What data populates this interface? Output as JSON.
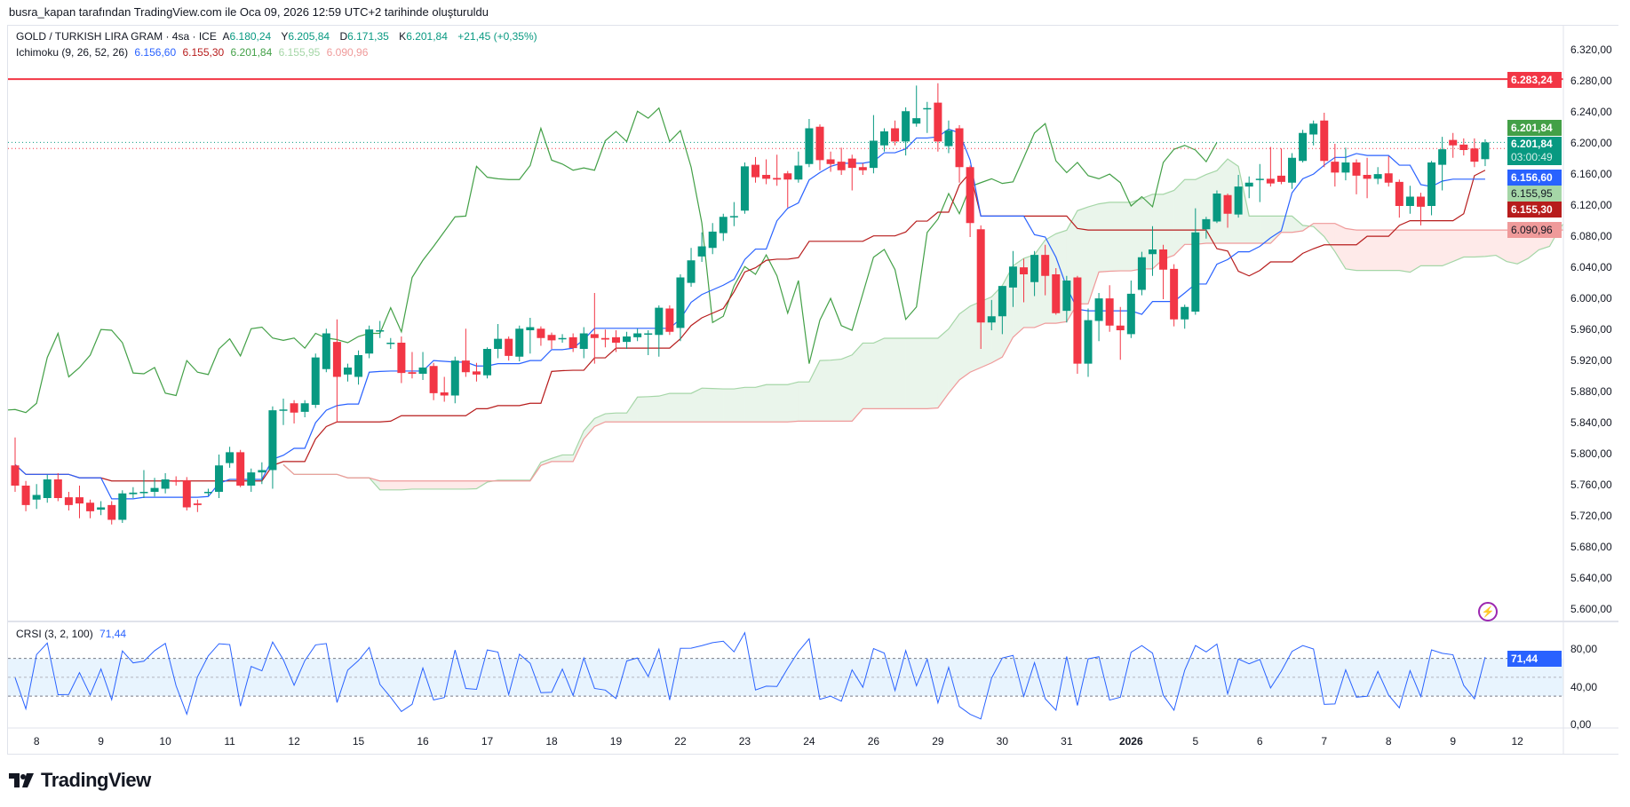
{
  "header": {
    "credit": "busra_kapan tarafından TradingView.com ile Oca 09, 2026 12:59 UTC+2 tarihinde oluşturuldu"
  },
  "legend": {
    "symbol": "GOLD / TURKISH LIRA GRAM · 4sa · ICE",
    "o_label": "A",
    "o": "6.180,24",
    "h_label": "Y",
    "h": "6.205,84",
    "l_label": "D",
    "l": "6.171,35",
    "c_label": "K",
    "c": "6.201,84",
    "change": "+21,45 (+0,35%)",
    "ichimoku_name": "Ichimoku (9, 26, 52, 26)",
    "ichimoku_values": [
      "6.156,60",
      "6.155,30",
      "6.201,84",
      "6.155,95",
      "6.090,96"
    ],
    "crsi_name": "CRSI (3, 2, 100)",
    "crsi_value": "71,44"
  },
  "colors": {
    "up": "#089981",
    "down": "#f23645",
    "tenkan": "#2962ff",
    "kijun": "#b71c1c",
    "chikou": "#43a047",
    "span_a": "#a5d6a7",
    "span_b": "#ef9a9a",
    "crsi": "#2962ff",
    "level": "#f23645"
  },
  "price_axis": [
    "6.320,00",
    "6.280,00",
    "6.240,00",
    "6.200,00",
    "6.160,00",
    "6.120,00",
    "6.080,00",
    "6.040,00",
    "6.000,00",
    "5.960,00",
    "5.920,00",
    "5.880,00",
    "5.840,00",
    "5.800,00",
    "5.760,00",
    "5.720,00",
    "5.680,00",
    "5.640,00",
    "5.600,00"
  ],
  "price_axis_values": [
    6320,
    6280,
    6240,
    6200,
    6160,
    6120,
    6080,
    6040,
    6000,
    5960,
    5920,
    5880,
    5840,
    5800,
    5760,
    5720,
    5680,
    5640,
    5600
  ],
  "price_labels": {
    "level": "6.283,24",
    "chikou": "6.201,84",
    "last": "6.201,84",
    "countdown": "03:00:49",
    "tenkan": "6.156,60",
    "span_a": "6.155,95",
    "kijun": "6.155,30",
    "span_b": "6.090,96"
  },
  "crsi_axis": [
    "80,00",
    "40,00",
    "0,00"
  ],
  "crsi_label": "71,44",
  "time_axis": [
    "8",
    "9",
    "10",
    "11",
    "12",
    "15",
    "16",
    "17",
    "18",
    "19",
    "22",
    "23",
    "24",
    "26",
    "29",
    "30",
    "31",
    "2026",
    "5",
    "6",
    "7",
    "8",
    "9",
    "12"
  ],
  "brand": "TradingView",
  "chart_data": {
    "type": "candlestick",
    "ichimoku": {
      "conversion": 9,
      "base": 26,
      "lagging": 52,
      "displacement": 26
    },
    "crsi": {
      "rsi": 3,
      "streak": 2,
      "rank": 100,
      "upper": 70,
      "middle": 50,
      "lower": 30,
      "last": 71.44
    },
    "horizontal_level": 6283.24,
    "last_price": 6201.84,
    "prev_close_line": 6194,
    "y_range": [
      5590,
      6330
    ],
    "crsi_range": [
      0,
      100
    ],
    "ohlc": [
      [
        5786,
        5822,
        5752,
        5760
      ],
      [
        5760,
        5766,
        5727,
        5735
      ],
      [
        5742,
        5762,
        5730,
        5748
      ],
      [
        5744,
        5774,
        5738,
        5768
      ],
      [
        5768,
        5776,
        5740,
        5744
      ],
      [
        5745,
        5752,
        5728,
        5735
      ],
      [
        5745,
        5760,
        5718,
        5737
      ],
      [
        5738,
        5742,
        5718,
        5727
      ],
      [
        5729,
        5740,
        5722,
        5732
      ],
      [
        5735,
        5740,
        5710,
        5716
      ],
      [
        5716,
        5754,
        5712,
        5750
      ],
      [
        5749,
        5758,
        5744,
        5751
      ],
      [
        5752,
        5780,
        5744,
        5752
      ],
      [
        5752,
        5770,
        5746,
        5757
      ],
      [
        5756,
        5776,
        5750,
        5768
      ],
      [
        5767,
        5772,
        5760,
        5765
      ],
      [
        5767,
        5771,
        5728,
        5732
      ],
      [
        5737,
        5742,
        5726,
        5735
      ],
      [
        5751,
        5756,
        5747,
        5752
      ],
      [
        5752,
        5800,
        5744,
        5786
      ],
      [
        5789,
        5810,
        5783,
        5803
      ],
      [
        5803,
        5806,
        5758,
        5760
      ],
      [
        5760,
        5782,
        5752,
        5777
      ],
      [
        5777,
        5790,
        5762,
        5780
      ],
      [
        5780,
        5862,
        5756,
        5857
      ],
      [
        5857,
        5872,
        5838,
        5858
      ],
      [
        5866,
        5870,
        5840,
        5854
      ],
      [
        5855,
        5870,
        5848,
        5866
      ],
      [
        5864,
        5930,
        5860,
        5925
      ],
      [
        5910,
        5962,
        5906,
        5956
      ],
      [
        5945,
        5974,
        5841,
        5900
      ],
      [
        5903,
        5917,
        5894,
        5912
      ],
      [
        5900,
        5934,
        5890,
        5928
      ],
      [
        5930,
        5966,
        5924,
        5961
      ],
      [
        5960,
        5972,
        5950,
        5960
      ],
      [
        5944,
        5950,
        5936,
        5944
      ],
      [
        5944,
        5952,
        5892,
        5905
      ],
      [
        5906,
        5932,
        5898,
        5904
      ],
      [
        5904,
        5932,
        5896,
        5912
      ],
      [
        5914,
        5918,
        5870,
        5879
      ],
      [
        5880,
        5900,
        5868,
        5876
      ],
      [
        5876,
        5926,
        5866,
        5921
      ],
      [
        5921,
        5962,
        5900,
        5906
      ],
      [
        5907,
        5918,
        5894,
        5903
      ],
      [
        5902,
        5938,
        5898,
        5936
      ],
      [
        5936,
        5968,
        5924,
        5949
      ],
      [
        5949,
        5952,
        5921,
        5927
      ],
      [
        5926,
        5966,
        5920,
        5962
      ],
      [
        5960,
        5976,
        5930,
        5964
      ],
      [
        5962,
        5965,
        5940,
        5950
      ],
      [
        5954,
        5957,
        5936,
        5947
      ],
      [
        5950,
        5955,
        5944,
        5950
      ],
      [
        5951,
        5956,
        5932,
        5937
      ],
      [
        5936,
        5964,
        5924,
        5956
      ],
      [
        5955,
        6008,
        5917,
        5950
      ],
      [
        5950,
        5961,
        5938,
        5948
      ],
      [
        5951,
        5960,
        5932,
        5944
      ],
      [
        5945,
        5958,
        5936,
        5952
      ],
      [
        5951,
        5962,
        5946,
        5956
      ],
      [
        5956,
        5960,
        5928,
        5956
      ],
      [
        5954,
        5992,
        5926,
        5989
      ],
      [
        5988,
        5992,
        5954,
        5958
      ],
      [
        5963,
        6032,
        5946,
        6028
      ],
      [
        6021,
        6066,
        6016,
        6050
      ],
      [
        6055,
        6086,
        6048,
        6068
      ],
      [
        6066,
        6098,
        6058,
        6087
      ],
      [
        6085,
        6110,
        6075,
        6106
      ],
      [
        6107,
        6125,
        6094,
        6107
      ],
      [
        6114,
        6176,
        6110,
        6171
      ],
      [
        6173,
        6183,
        6150,
        6157
      ],
      [
        6160,
        6180,
        6148,
        6155
      ],
      [
        6156,
        6186,
        6146,
        6154
      ],
      [
        6162,
        6165,
        6118,
        6154
      ],
      [
        6154,
        6190,
        6150,
        6172
      ],
      [
        6174,
        6232,
        6170,
        6220
      ],
      [
        6222,
        6225,
        6166,
        6179
      ],
      [
        6180,
        6190,
        6164,
        6174
      ],
      [
        6177,
        6195,
        6160,
        6166
      ],
      [
        6181,
        6186,
        6140,
        6169
      ],
      [
        6170,
        6175,
        6160,
        6166
      ],
      [
        6169,
        6237,
        6162,
        6204
      ],
      [
        6198,
        6220,
        6190,
        6216
      ],
      [
        6220,
        6230,
        6198,
        6203
      ],
      [
        6203,
        6247,
        6185,
        6242
      ],
      [
        6226,
        6275,
        6222,
        6233
      ],
      [
        6246,
        6254,
        6214,
        6246
      ],
      [
        6253,
        6278,
        6190,
        6203
      ],
      [
        6197,
        6230,
        6188,
        6217
      ],
      [
        6220,
        6224,
        6150,
        6170
      ],
      [
        6170,
        6172,
        6080,
        6098
      ],
      [
        6090,
        6095,
        5936,
        5970
      ],
      [
        5970,
        5999,
        5960,
        5978
      ],
      [
        5978,
        6017,
        5955,
        6017
      ],
      [
        6015,
        6062,
        5990,
        6042
      ],
      [
        6041,
        6052,
        5996,
        6032
      ],
      [
        6022,
        6062,
        6004,
        6057
      ],
      [
        6057,
        6070,
        6005,
        6030
      ],
      [
        6032,
        6040,
        5980,
        5982
      ],
      [
        5985,
        6030,
        5970,
        6024
      ],
      [
        6028,
        6030,
        5904,
        5917
      ],
      [
        5917,
        5988,
        5900,
        5973
      ],
      [
        5972,
        6008,
        5946,
        6001
      ],
      [
        6001,
        6018,
        5958,
        5966
      ],
      [
        5966,
        5990,
        5922,
        5960
      ],
      [
        5955,
        6024,
        5950,
        6007
      ],
      [
        6012,
        6061,
        6005,
        6054
      ],
      [
        6058,
        6094,
        6030,
        6064
      ],
      [
        6064,
        6070,
        6000,
        6038
      ],
      [
        6039,
        6045,
        5965,
        5974
      ],
      [
        5974,
        5993,
        5962,
        5990
      ],
      [
        5984,
        6117,
        5980,
        6086
      ],
      [
        6090,
        6106,
        6078,
        6103
      ],
      [
        6100,
        6140,
        6098,
        6136
      ],
      [
        6134,
        6136,
        6092,
        6110
      ],
      [
        6109,
        6160,
        6105,
        6145
      ],
      [
        6145,
        6158,
        6130,
        6150
      ],
      [
        6155,
        6174,
        6125,
        6155
      ],
      [
        6155,
        6196,
        6145,
        6149
      ],
      [
        6159,
        6194,
        6148,
        6151
      ],
      [
        6150,
        6188,
        6142,
        6182
      ],
      [
        6178,
        6218,
        6176,
        6214
      ],
      [
        6212,
        6230,
        6198,
        6226
      ],
      [
        6230,
        6240,
        6170,
        6178
      ],
      [
        6177,
        6200,
        6145,
        6163
      ],
      [
        6163,
        6195,
        6153,
        6176
      ],
      [
        6176,
        6180,
        6135,
        6159
      ],
      [
        6160,
        6182,
        6130,
        6155
      ],
      [
        6155,
        6170,
        6148,
        6161
      ],
      [
        6162,
        6184,
        6145,
        6150
      ],
      [
        6151,
        6154,
        6105,
        6120
      ],
      [
        6120,
        6146,
        6110,
        6132
      ],
      [
        6132,
        6137,
        6095,
        6119
      ],
      [
        6120,
        6178,
        6108,
        6176
      ],
      [
        6173,
        6209,
        6140,
        6193
      ],
      [
        6205,
        6214,
        6182,
        6198
      ],
      [
        6199,
        6207,
        6185,
        6192
      ],
      [
        6194,
        6207,
        6170,
        6177
      ],
      [
        6180.24,
        6205.84,
        6171.35,
        6201.84
      ]
    ]
  }
}
